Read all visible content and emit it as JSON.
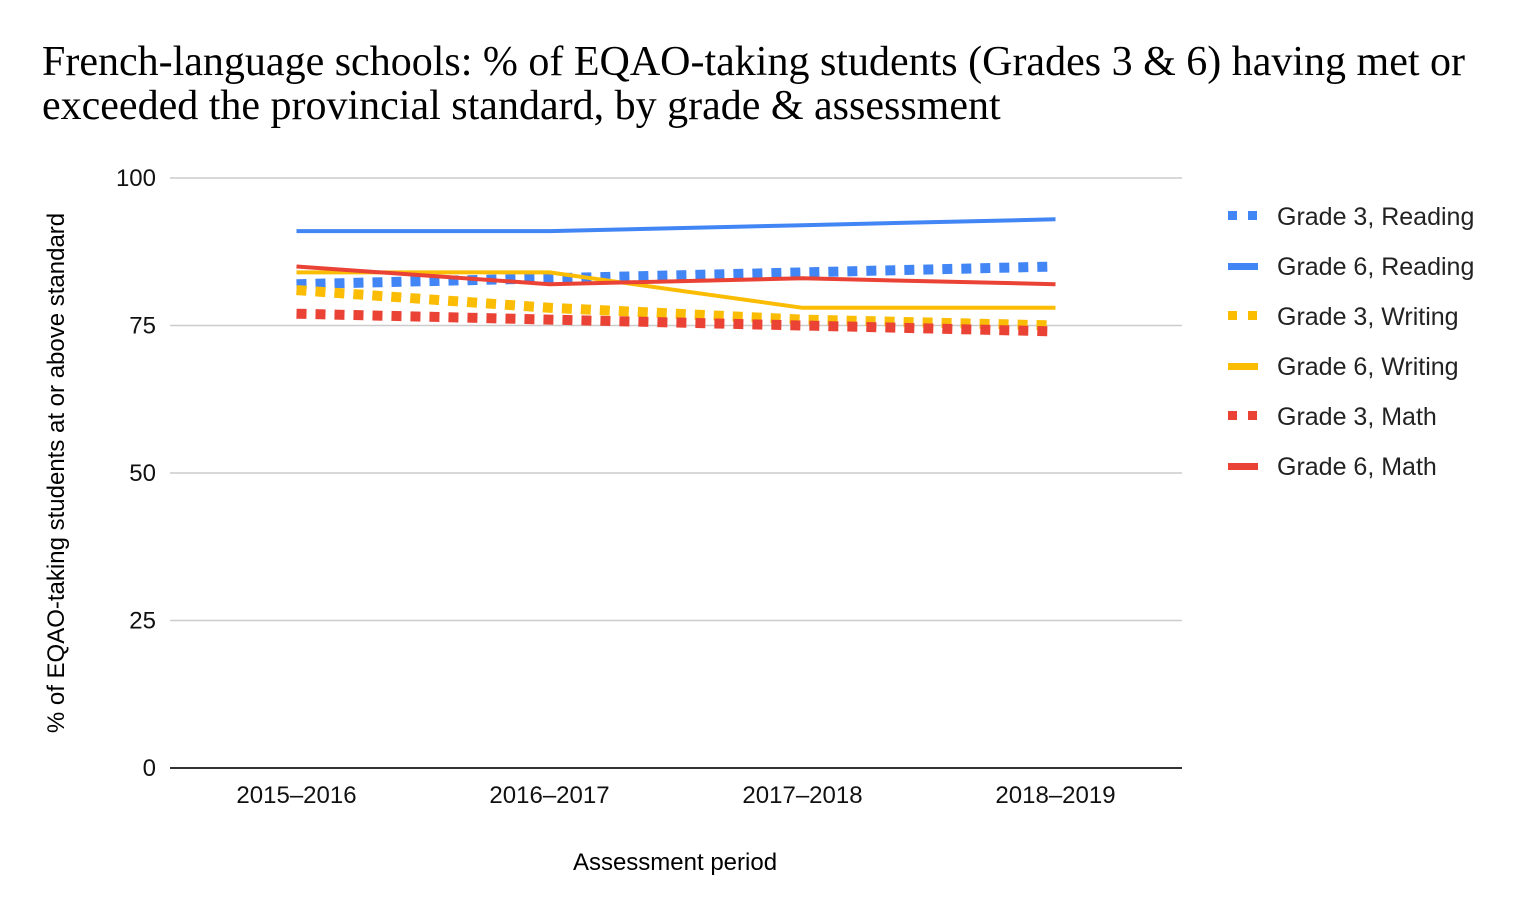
{
  "chart_data": {
    "type": "line",
    "title": "French-language schools: % of EQAO-taking students (Grades 3 & 6) having met or exceeded the provincial standard, by grade & assessment",
    "xlabel": "Assessment period",
    "ylabel": "% of EQAO-taking students at or above standard",
    "x": [
      "2015–2016",
      "2016–2017",
      "2017–2018",
      "2018–2019"
    ],
    "yticks": [
      0,
      25,
      50,
      75,
      100
    ],
    "ylim": [
      0,
      100
    ],
    "grid": true,
    "legend_position": "right",
    "series": [
      {
        "name": "Grade 3, Reading",
        "color": "#4285f4",
        "style": "dotted",
        "values": [
          82,
          83,
          84,
          85
        ]
      },
      {
        "name": "Grade 6, Reading",
        "color": "#4285f4",
        "style": "solid",
        "values": [
          91,
          91,
          92,
          93
        ]
      },
      {
        "name": "Grade 3, Writing",
        "color": "#fbbc04",
        "style": "dotted",
        "values": [
          81,
          78,
          76,
          75
        ]
      },
      {
        "name": "Grade 6, Writing",
        "color": "#fbbc04",
        "style": "solid",
        "values": [
          84,
          84,
          78,
          78
        ]
      },
      {
        "name": "Grade 3, Math",
        "color": "#ea4335",
        "style": "dotted",
        "values": [
          77,
          76,
          75,
          74
        ]
      },
      {
        "name": "Grade 6, Math",
        "color": "#ea4335",
        "style": "solid",
        "values": [
          85,
          82,
          83,
          82
        ]
      }
    ]
  }
}
